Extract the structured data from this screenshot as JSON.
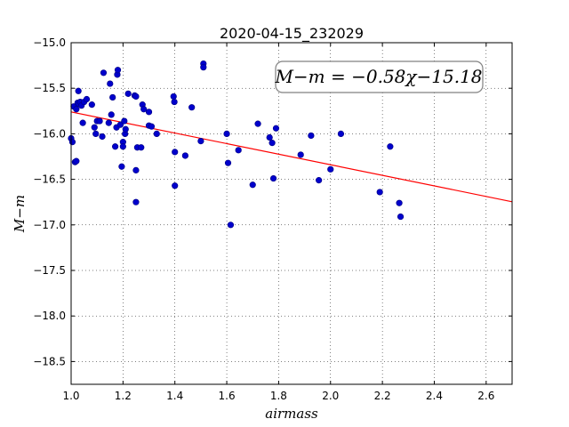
{
  "chart_data": {
    "type": "scatter",
    "title": "2020-04-15_232029",
    "xlabel": "airmass",
    "ylabel": "M−m",
    "xlim": [
      1.0,
      2.7
    ],
    "ylim": [
      -15.0,
      -18.75
    ],
    "y_inverted": true,
    "grid": true,
    "x_ticks": [
      1.0,
      1.2,
      1.4,
      1.6,
      1.8,
      2.0,
      2.2,
      2.4,
      2.6
    ],
    "x_tick_labels": [
      "1.0",
      "1.2",
      "1.4",
      "1.6",
      "1.8",
      "2.0",
      "2.2",
      "2.4",
      "2.6"
    ],
    "y_ticks": [
      -15.0,
      -15.5,
      -16.0,
      -16.5,
      -17.0,
      -17.5,
      -18.0,
      -18.5
    ],
    "y_tick_labels": [
      "−15.0",
      "−15.5",
      "−16.0",
      "−16.5",
      "−17.0",
      "−17.5",
      "−18.0",
      "−18.5"
    ],
    "annotation": "M−m = −0.58χ−15.18",
    "fit": {
      "slope": -0.58,
      "intercept": -15.18,
      "color": "#ff0000"
    },
    "point_color": "#0000cc",
    "points": [
      [
        1.0,
        -16.05
      ],
      [
        1.005,
        -16.09
      ],
      [
        1.01,
        -15.7
      ],
      [
        1.015,
        -16.31
      ],
      [
        1.02,
        -16.3
      ],
      [
        1.02,
        -15.73
      ],
      [
        1.025,
        -15.66
      ],
      [
        1.028,
        -15.53
      ],
      [
        1.03,
        -15.67
      ],
      [
        1.035,
        -15.65
      ],
      [
        1.04,
        -15.69
      ],
      [
        1.045,
        -15.88
      ],
      [
        1.05,
        -15.65
      ],
      [
        1.06,
        -15.62
      ],
      [
        1.08,
        -15.68
      ],
      [
        1.09,
        -15.93
      ],
      [
        1.095,
        -16.0
      ],
      [
        1.1,
        -15.86
      ],
      [
        1.11,
        -15.86
      ],
      [
        1.12,
        -16.03
      ],
      [
        1.125,
        -15.33
      ],
      [
        1.145,
        -15.88
      ],
      [
        1.15,
        -15.45
      ],
      [
        1.155,
        -15.79
      ],
      [
        1.16,
        -15.6
      ],
      [
        1.17,
        -16.14
      ],
      [
        1.175,
        -15.93
      ],
      [
        1.178,
        -15.35
      ],
      [
        1.18,
        -15.3
      ],
      [
        1.19,
        -15.9
      ],
      [
        1.195,
        -16.36
      ],
      [
        1.2,
        -16.09
      ],
      [
        1.2,
        -16.14
      ],
      [
        1.205,
        -15.86
      ],
      [
        1.208,
        -16.0
      ],
      [
        1.21,
        -15.95
      ],
      [
        1.22,
        -15.56
      ],
      [
        1.245,
        -15.58
      ],
      [
        1.25,
        -15.59
      ],
      [
        1.25,
        -16.4
      ],
      [
        1.255,
        -16.15
      ],
      [
        1.25,
        -16.75
      ],
      [
        1.27,
        -16.15
      ],
      [
        1.275,
        -15.68
      ],
      [
        1.28,
        -15.73
      ],
      [
        1.3,
        -15.76
      ],
      [
        1.3,
        -15.91
      ],
      [
        1.31,
        -15.92
      ],
      [
        1.33,
        -16.0
      ],
      [
        1.395,
        -15.59
      ],
      [
        1.398,
        -15.65
      ],
      [
        1.4,
        -16.2
      ],
      [
        1.4,
        -16.57
      ],
      [
        1.44,
        -16.24
      ],
      [
        1.465,
        -15.71
      ],
      [
        1.5,
        -16.08
      ],
      [
        1.51,
        -15.23
      ],
      [
        1.51,
        -15.27
      ],
      [
        1.6,
        -16.0
      ],
      [
        1.605,
        -16.32
      ],
      [
        1.615,
        -17.0
      ],
      [
        1.645,
        -16.18
      ],
      [
        1.7,
        -16.56
      ],
      [
        1.72,
        -15.89
      ],
      [
        1.765,
        -16.04
      ],
      [
        1.775,
        -16.1
      ],
      [
        1.78,
        -16.49
      ],
      [
        1.79,
        -15.94
      ],
      [
        1.885,
        -16.23
      ],
      [
        1.925,
        -16.02
      ],
      [
        1.955,
        -16.51
      ],
      [
        2.0,
        -16.39
      ],
      [
        2.04,
        -16.0
      ],
      [
        2.19,
        -16.64
      ],
      [
        2.23,
        -16.14
      ],
      [
        2.265,
        -16.76
      ],
      [
        2.27,
        -16.91
      ]
    ]
  }
}
